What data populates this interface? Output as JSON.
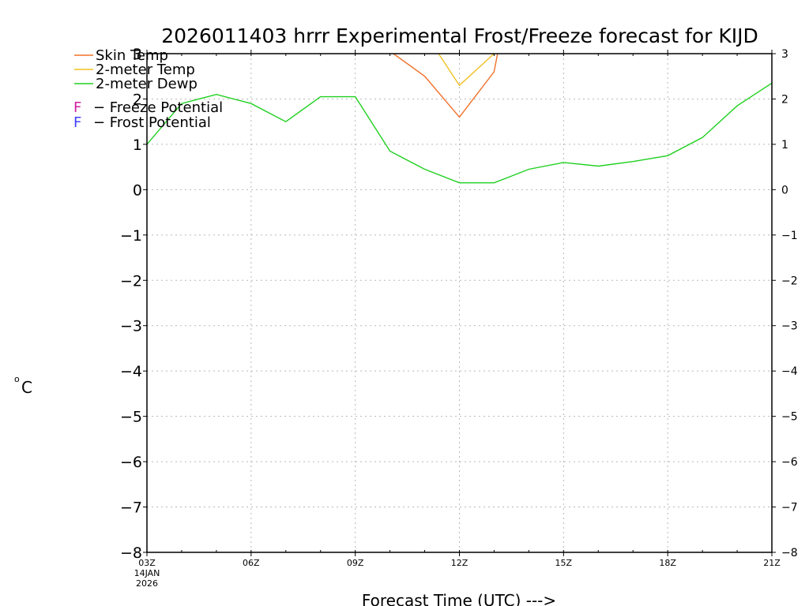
{
  "chart_data": {
    "type": "line",
    "title": "2026011403 hrrr Experimental Frost/Freeze forecast for KIJD",
    "ylabel_sup": "o",
    "ylabel": "C",
    "xlabel": "Forecast Time (UTC) --->",
    "ylim": [
      -8,
      3
    ],
    "xlim": [
      3,
      21
    ],
    "yticks": [
      -8,
      -7,
      -6,
      -5,
      -4,
      -3,
      -2,
      -1,
      0,
      1,
      2,
      3
    ],
    "ytick_labels": [
      "−8",
      "−7",
      "−6",
      "−5",
      "−4",
      "−3",
      "−2",
      "−1",
      "0",
      "1",
      "2",
      "3"
    ],
    "xticks": [
      3,
      6,
      9,
      12,
      15,
      18,
      21
    ],
    "xtick_labels": [
      "03Z",
      "06Z",
      "09Z",
      "12Z",
      "15Z",
      "18Z",
      "21Z"
    ],
    "x_first_sublabels": [
      "14JAN",
      "2026"
    ],
    "grid": true,
    "series": [
      {
        "name": "Skin Temp",
        "color": "#f07028",
        "x": [
          10.1,
          11,
          12,
          13,
          13.1
        ],
        "values": [
          3.0,
          2.5,
          1.6,
          2.6,
          3.0
        ]
      },
      {
        "name": "2-meter Temp",
        "color": "#f0c020",
        "x": [
          11.4,
          12,
          13
        ],
        "values": [
          3.0,
          2.3,
          3.0
        ]
      },
      {
        "name": "2-meter Dewp",
        "color": "#20d020",
        "x": [
          3,
          4,
          5,
          6,
          7,
          8,
          9,
          10,
          11,
          12,
          13,
          14,
          15,
          16,
          17,
          18,
          19,
          20,
          21
        ],
        "values": [
          1.0,
          1.9,
          2.1,
          1.9,
          1.5,
          2.05,
          2.05,
          0.85,
          0.45,
          0.15,
          0.15,
          0.45,
          0.6,
          0.52,
          0.62,
          0.75,
          1.15,
          1.85,
          2.35
        ]
      }
    ],
    "potential_legend": [
      {
        "letter": "F",
        "text": "− Freeze Potential",
        "color": "#d020a0"
      },
      {
        "letter": "F",
        "text": "− Frost Potential",
        "color": "#4040ff"
      }
    ]
  }
}
